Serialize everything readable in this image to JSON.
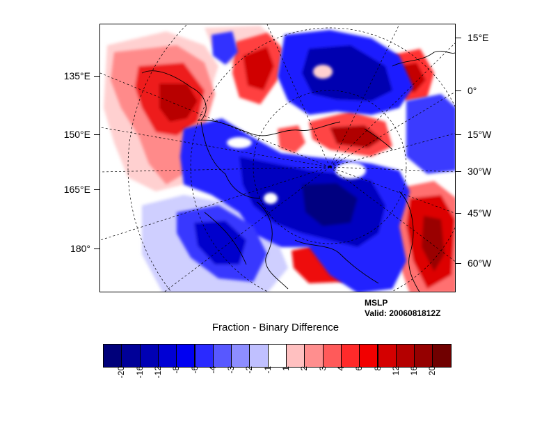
{
  "map": {
    "left_lon_labels": [
      "135°E",
      "150°E",
      "165°E",
      "180°"
    ],
    "right_lon_labels": [
      "15°E",
      "0°",
      "15°W",
      "30°W",
      "45°W",
      "60°W"
    ]
  },
  "annotation": {
    "field": "MSLP",
    "valid": "Valid: 2006081812Z"
  },
  "title": "Fraction - Binary Difference",
  "colorbar": {
    "labels": [
      "-20",
      "-16",
      "-12",
      "-8",
      "-6",
      "-4",
      "-3",
      "-2",
      "-1",
      "1",
      "2",
      "3",
      "4",
      "6",
      "8",
      "12",
      "16",
      "20"
    ],
    "colors": [
      "#00007a",
      "#000098",
      "#0000b4",
      "#0000d4",
      "#0000f2",
      "#2a2aff",
      "#5858ff",
      "#8d8dff",
      "#c0c0ff",
      "#ffffff",
      "#ffc0c0",
      "#ff8e8e",
      "#ff5a5a",
      "#ff2a2a",
      "#f20000",
      "#d40000",
      "#b40000",
      "#950000",
      "#700000"
    ],
    "palette": {
      "blue_strong": "#0000e0",
      "blue_dark": "#000099",
      "blue_mid": "#3c3cff",
      "blue_light": "#9090ff",
      "blue_pale": "#c6c6ff",
      "red_pale": "#ffc4c4",
      "red_light": "#ff8888",
      "red_mid": "#ff3333",
      "red_strong": "#e00000",
      "red_dark": "#a00000"
    }
  }
}
